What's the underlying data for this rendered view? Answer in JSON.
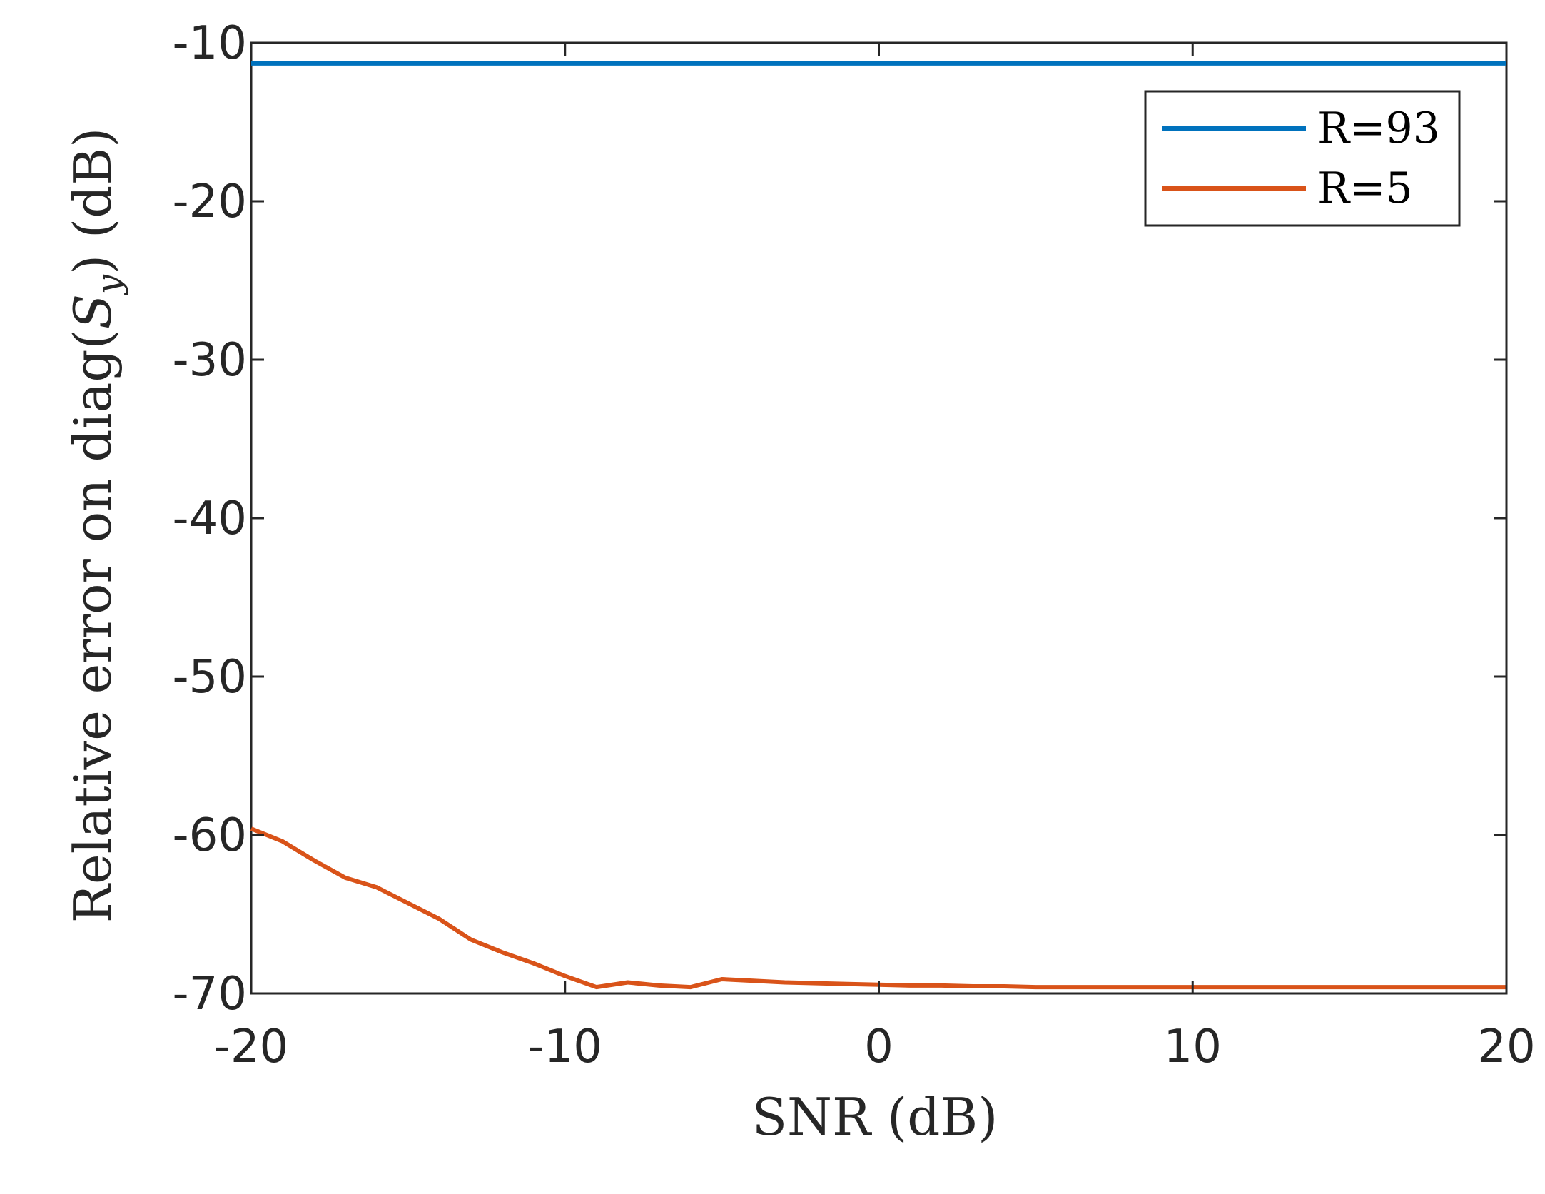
{
  "chart_data": {
    "type": "line",
    "title": "",
    "xlabel": "SNR (dB)",
    "ylabel": "Relative error on diag(S_y) (dB)",
    "ylabel_parts": {
      "before": "Relative error on diag(",
      "sym": "S",
      "sub": "y",
      "after": ") (dB)"
    },
    "xlim": [
      -20,
      20
    ],
    "ylim": [
      -70,
      -10
    ],
    "xticks": [
      -20,
      -10,
      0,
      10,
      20
    ],
    "yticks": [
      -10,
      -20,
      -30,
      -40,
      -50,
      -60,
      -70
    ],
    "xtick_labels": [
      "-20",
      "-10",
      "0",
      "10",
      "20"
    ],
    "ytick_labels": [
      "-10",
      "-20",
      "-30",
      "-40",
      "-50",
      "-60",
      "-70"
    ],
    "grid": false,
    "legend_position": "top-right",
    "x": [
      -20,
      -19,
      -18,
      -17,
      -16,
      -15,
      -14,
      -13,
      -12,
      -11,
      -10,
      -9,
      -8,
      -7,
      -6,
      -5,
      -4,
      -3,
      -2,
      -1,
      0,
      1,
      2,
      3,
      4,
      5,
      6,
      7,
      8,
      9,
      10,
      11,
      12,
      13,
      14,
      15,
      16,
      17,
      18,
      19,
      20
    ],
    "series": [
      {
        "name": "R=93",
        "color": "#0072BD",
        "values": [
          -11.3,
          -11.3,
          -11.3,
          -11.3,
          -11.3,
          -11.3,
          -11.3,
          -11.3,
          -11.3,
          -11.3,
          -11.3,
          -11.3,
          -11.3,
          -11.3,
          -11.3,
          -11.3,
          -11.3,
          -11.3,
          -11.3,
          -11.3,
          -11.3,
          -11.3,
          -11.3,
          -11.3,
          -11.3,
          -11.3,
          -11.3,
          -11.3,
          -11.3,
          -11.3,
          -11.3,
          -11.3,
          -11.3,
          -11.3,
          -11.3,
          -11.3,
          -11.3,
          -11.3,
          -11.3,
          -11.3,
          -11.3
        ]
      },
      {
        "name": "R=5",
        "color": "#D95319",
        "values": [
          -59.6,
          -60.4,
          -61.6,
          -62.7,
          -63.3,
          -64.3,
          -65.3,
          -66.6,
          -67.4,
          -68.1,
          -68.9,
          -69.6,
          -69.3,
          -69.5,
          -69.6,
          -69.1,
          -69.2,
          -69.3,
          -69.35,
          -69.4,
          -69.45,
          -69.5,
          -69.5,
          -69.55,
          -69.55,
          -69.6,
          -69.6,
          -69.6,
          -69.6,
          -69.6,
          -69.6,
          -69.6,
          -69.6,
          -69.6,
          -69.6,
          -69.6,
          -69.6,
          -69.6,
          -69.6,
          -69.6,
          -69.6
        ]
      }
    ]
  }
}
